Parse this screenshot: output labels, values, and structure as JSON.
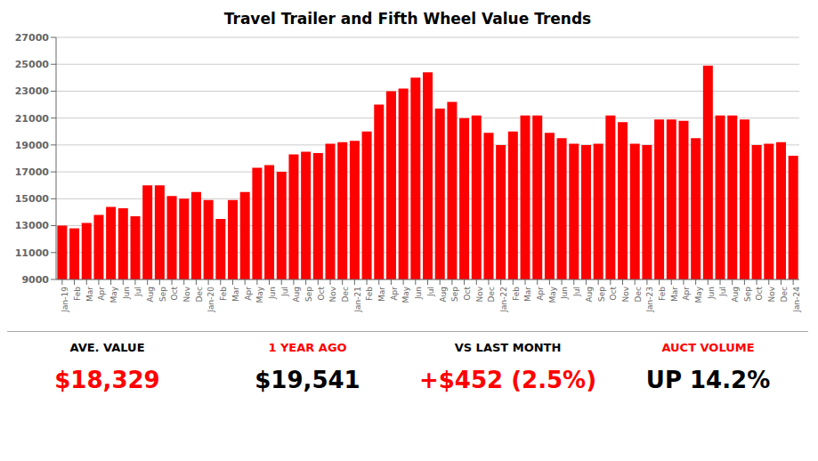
{
  "chart_data": {
    "type": "bar",
    "title": "Travel Trailer and Fifth Wheel Value Trends",
    "categories": [
      "Jan-19",
      "Feb",
      "Mar",
      "Apr",
      "May",
      "Jun",
      "Jul",
      "Aug",
      "Sep",
      "Oct",
      "Nov",
      "Dec",
      "Jan-20",
      "Feb",
      "Mar",
      "Apr",
      "May",
      "Jun",
      "Jul",
      "Aug",
      "Sep",
      "Oct",
      "Nov",
      "Dec",
      "Jan-21",
      "Feb",
      "Mar",
      "Apr",
      "May",
      "Jun",
      "Jul",
      "Aug",
      "Sep",
      "Oct",
      "Nov",
      "Dec",
      "Jan-22",
      "Feb",
      "Mar",
      "Apr",
      "May",
      "Jun",
      "Jul",
      "Aug",
      "Sep",
      "Oct",
      "Nov",
      "Dec",
      "Jan-23",
      "Feb",
      "Mar",
      "Apr",
      "May",
      "Jun",
      "Jul",
      "Aug",
      "Sep",
      "Oct",
      "Nov",
      "Dec",
      "Jan-24"
    ],
    "values": [
      13000,
      12800,
      13200,
      13800,
      14400,
      14300,
      13700,
      16000,
      16000,
      15200,
      15000,
      15500,
      14900,
      13500,
      14900,
      15500,
      17300,
      17500,
      17000,
      18300,
      18500,
      18400,
      19100,
      19200,
      19300,
      20000,
      22000,
      23000,
      23200,
      24000,
      24400,
      21700,
      22200,
      21000,
      21200,
      19900,
      19000,
      20000,
      21200,
      21200,
      19900,
      19500,
      19100,
      19000,
      19100,
      21200,
      20700,
      19100,
      19000,
      20900,
      20900,
      20800,
      19500,
      24900,
      21200,
      21200,
      20900,
      19000,
      19100,
      19200,
      18200
    ],
    "color": "#FF0000",
    "ylim": [
      9000,
      27000
    ],
    "yticks": [
      9000,
      11000,
      13000,
      15000,
      17000,
      19000,
      21000,
      23000,
      25000,
      27000
    ],
    "grid": true,
    "annotations": [
      {
        "lines": [
          {
            "text": "AVE. VALUE",
            "color": "#000000"
          },
          {
            "text": "$18,329",
            "color": "#FF0000"
          }
        ]
      },
      {
        "lines": [
          {
            "text": "1 YEAR AGO",
            "color": "#FF0000"
          },
          {
            "text": "$19,541",
            "color": "#000000"
          }
        ]
      },
      {
        "lines": [
          {
            "text": "VS LAST MONTH",
            "color": "#000000"
          },
          {
            "text": "+$452 (2.5%)",
            "color": "#FF0000"
          }
        ]
      },
      {
        "lines": [
          {
            "text": "AUCT VOLUME",
            "color": "#FF0000"
          },
          {
            "text": "UP 14.2%",
            "color": "#000000"
          }
        ]
      }
    ]
  }
}
